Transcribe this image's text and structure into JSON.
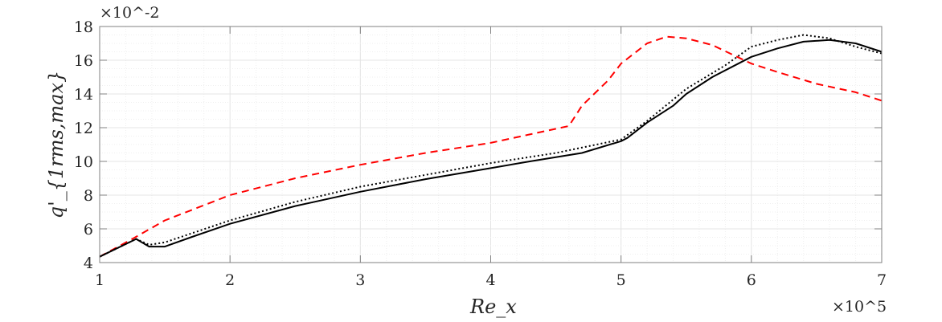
{
  "chart_data": {
    "type": "line",
    "xlabel": "Re_x",
    "ylabel": "q'_{1rms,max}",
    "x_multiplier": "×10^5",
    "y_multiplier": "×10^-2",
    "xlim": [
      1,
      7
    ],
    "ylim": [
      4,
      18
    ],
    "xticks": [
      "1",
      "2",
      "3",
      "4",
      "5",
      "6",
      "7"
    ],
    "yticks": [
      "4",
      "6",
      "8",
      "10",
      "12",
      "14",
      "16",
      "18"
    ],
    "grid": true,
    "series": [
      {
        "style": "dashed",
        "color": "#ff0000",
        "points": [
          [
            1,
            4.35
          ],
          [
            1.25,
            5.4
          ],
          [
            1.5,
            6.5
          ],
          [
            2,
            8.0
          ],
          [
            2.5,
            9.0
          ],
          [
            3,
            9.8
          ],
          [
            3.5,
            10.5
          ],
          [
            4,
            11.1
          ],
          [
            4.3,
            11.6
          ],
          [
            4.6,
            12.1
          ],
          [
            4.7,
            13.3
          ],
          [
            4.9,
            14.8
          ],
          [
            5.0,
            15.8
          ],
          [
            5.2,
            17.0
          ],
          [
            5.35,
            17.4
          ],
          [
            5.5,
            17.3
          ],
          [
            5.7,
            16.9
          ],
          [
            6,
            15.8
          ],
          [
            6.2,
            15.3
          ],
          [
            6.5,
            14.6
          ],
          [
            6.8,
            14.1
          ],
          [
            7,
            13.6
          ]
        ]
      },
      {
        "style": "solid",
        "color": "#000000",
        "points": [
          [
            1,
            4.35
          ],
          [
            1.28,
            5.4
          ],
          [
            1.38,
            4.95
          ],
          [
            1.5,
            4.95
          ],
          [
            1.7,
            5.5
          ],
          [
            2,
            6.3
          ],
          [
            2.5,
            7.35
          ],
          [
            3,
            8.2
          ],
          [
            3.5,
            8.95
          ],
          [
            4,
            9.6
          ],
          [
            4.3,
            10.0
          ],
          [
            4.7,
            10.5
          ],
          [
            5.0,
            11.2
          ],
          [
            5.05,
            11.4
          ],
          [
            5.2,
            12.3
          ],
          [
            5.4,
            13.3
          ],
          [
            5.5,
            14.0
          ],
          [
            5.7,
            15.0
          ],
          [
            5.9,
            15.8
          ],
          [
            6.0,
            16.2
          ],
          [
            6.2,
            16.7
          ],
          [
            6.4,
            17.1
          ],
          [
            6.6,
            17.2
          ],
          [
            6.8,
            17.0
          ],
          [
            7,
            16.5
          ]
        ]
      },
      {
        "style": "dotted",
        "color": "#000000",
        "points": [
          [
            1,
            4.35
          ],
          [
            1.28,
            5.4
          ],
          [
            1.38,
            5.05
          ],
          [
            1.5,
            5.2
          ],
          [
            2,
            6.5
          ],
          [
            2.5,
            7.6
          ],
          [
            3,
            8.5
          ],
          [
            3.5,
            9.2
          ],
          [
            4,
            9.9
          ],
          [
            4.5,
            10.5
          ],
          [
            5.0,
            11.3
          ],
          [
            5.2,
            12.4
          ],
          [
            5.5,
            14.3
          ],
          [
            5.8,
            15.7
          ],
          [
            6.0,
            16.8
          ],
          [
            6.2,
            17.2
          ],
          [
            6.4,
            17.5
          ],
          [
            6.6,
            17.3
          ],
          [
            6.8,
            16.8
          ],
          [
            7,
            16.4
          ]
        ]
      }
    ]
  }
}
